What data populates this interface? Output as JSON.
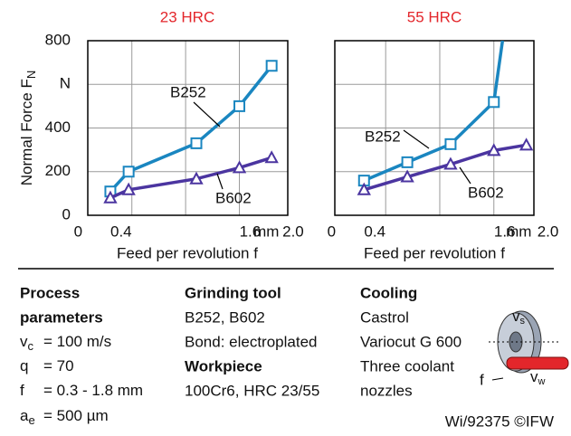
{
  "chart_data": [
    {
      "type": "line",
      "title": "23 HRC",
      "y_label": "Normal Force F",
      "y_label_sub": "N",
      "x_label": "Feed per revolution f",
      "xlim": [
        0.09,
        1.95
      ],
      "ylim": [
        0,
        800
      ],
      "xticks": [
        0,
        0.4,
        1.6,
        {
          "value": 1.75,
          "label": "mm"
        },
        {
          "value": 2,
          "label": "2.0"
        }
      ],
      "yticks": [
        0,
        200,
        400,
        {
          "value": 600,
          "label": "N"
        },
        800
      ],
      "xgrid": [
        0.5,
        1.0,
        1.5
      ],
      "ygrid": [
        200,
        400,
        600
      ],
      "series": [
        {
          "name": "B252",
          "color": "#1a86c0",
          "marker": "square",
          "x": [
            0.3,
            0.47,
            1.1,
            1.5,
            1.8
          ],
          "values": [
            109,
            200,
            330,
            500,
            685
          ]
        },
        {
          "name": "B602",
          "color": "#4b35a0",
          "marker": "triangle",
          "x": [
            0.3,
            0.47,
            1.1,
            1.5,
            1.8
          ],
          "values": [
            80,
            117,
            167,
            218,
            264
          ]
        }
      ]
    },
    {
      "type": "line",
      "title": "55 HRC",
      "x_label": "Feed per revolution f",
      "xlim": [
        0.03,
        1.87
      ],
      "ylim": [
        0,
        800
      ],
      "xticks": [
        0,
        0.4,
        1.6,
        {
          "value": 1.73,
          "label": "mm"
        },
        {
          "value": 2,
          "label": "2.0"
        }
      ],
      "xgrid": [
        0.5,
        1.0,
        1.5
      ],
      "ygrid": [
        200,
        400,
        600
      ],
      "series": [
        {
          "name": "B252",
          "color": "#1a86c0",
          "marker": "square",
          "x": [
            0.3,
            0.7,
            1.1,
            1.5,
            1.58
          ],
          "values": [
            159,
            243,
            326,
            519,
            800
          ]
        },
        {
          "name": "B602",
          "color": "#4b35a0",
          "marker": "triangle",
          "x": [
            0.3,
            0.7,
            1.1,
            1.5,
            1.8
          ],
          "values": [
            117,
            176,
            234,
            297,
            322
          ]
        }
      ]
    }
  ],
  "info": {
    "process": {
      "heading": [
        "Process",
        "parameters"
      ],
      "rows": [
        {
          "symbol": "v",
          "sub": "c",
          "text": "= 100 m/s"
        },
        {
          "symbol": "q",
          "text": "= 70"
        },
        {
          "symbol": "f",
          "text": "= 0.3 - 1.8 mm"
        },
        {
          "symbol": "a",
          "sub": "e",
          "text": "= 500 µm"
        }
      ]
    },
    "tool": {
      "heading": "Grinding tool",
      "lines": [
        "B252, B602",
        "Bond: electroplated"
      ]
    },
    "workpiece": {
      "heading": "Workpiece",
      "lines": [
        "100Cr6, HRC 23/55"
      ]
    },
    "cooling": {
      "heading": "Cooling",
      "lines": [
        "Castrol",
        "Variocut G 600",
        "Three coolant",
        "nozzles"
      ]
    },
    "figure": {
      "vs": [
        "v",
        "s"
      ],
      "f": "f",
      "vw": [
        "v",
        "w"
      ]
    },
    "footer": "Wi/92375 ©IFW"
  }
}
